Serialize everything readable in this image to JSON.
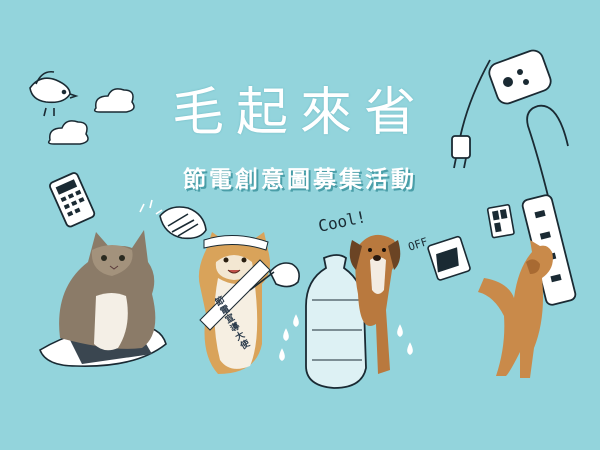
{
  "banner": {
    "title": "毛起來省",
    "subtitle": "節電創意圖募集活動",
    "sash_text": "節電宣導大使",
    "cool_text": "Cool!",
    "off_text": "OFF"
  },
  "colors": {
    "background": "#93d4dc",
    "title": "#ffffff",
    "line_art": "#1a2a33"
  },
  "icons": [
    "bird-icon",
    "cloud-icon",
    "remote-control-icon",
    "plug-icon",
    "light-switch-icon",
    "power-strip-icon",
    "fan-icon",
    "water-bottle-icon",
    "blanket-icon"
  ]
}
